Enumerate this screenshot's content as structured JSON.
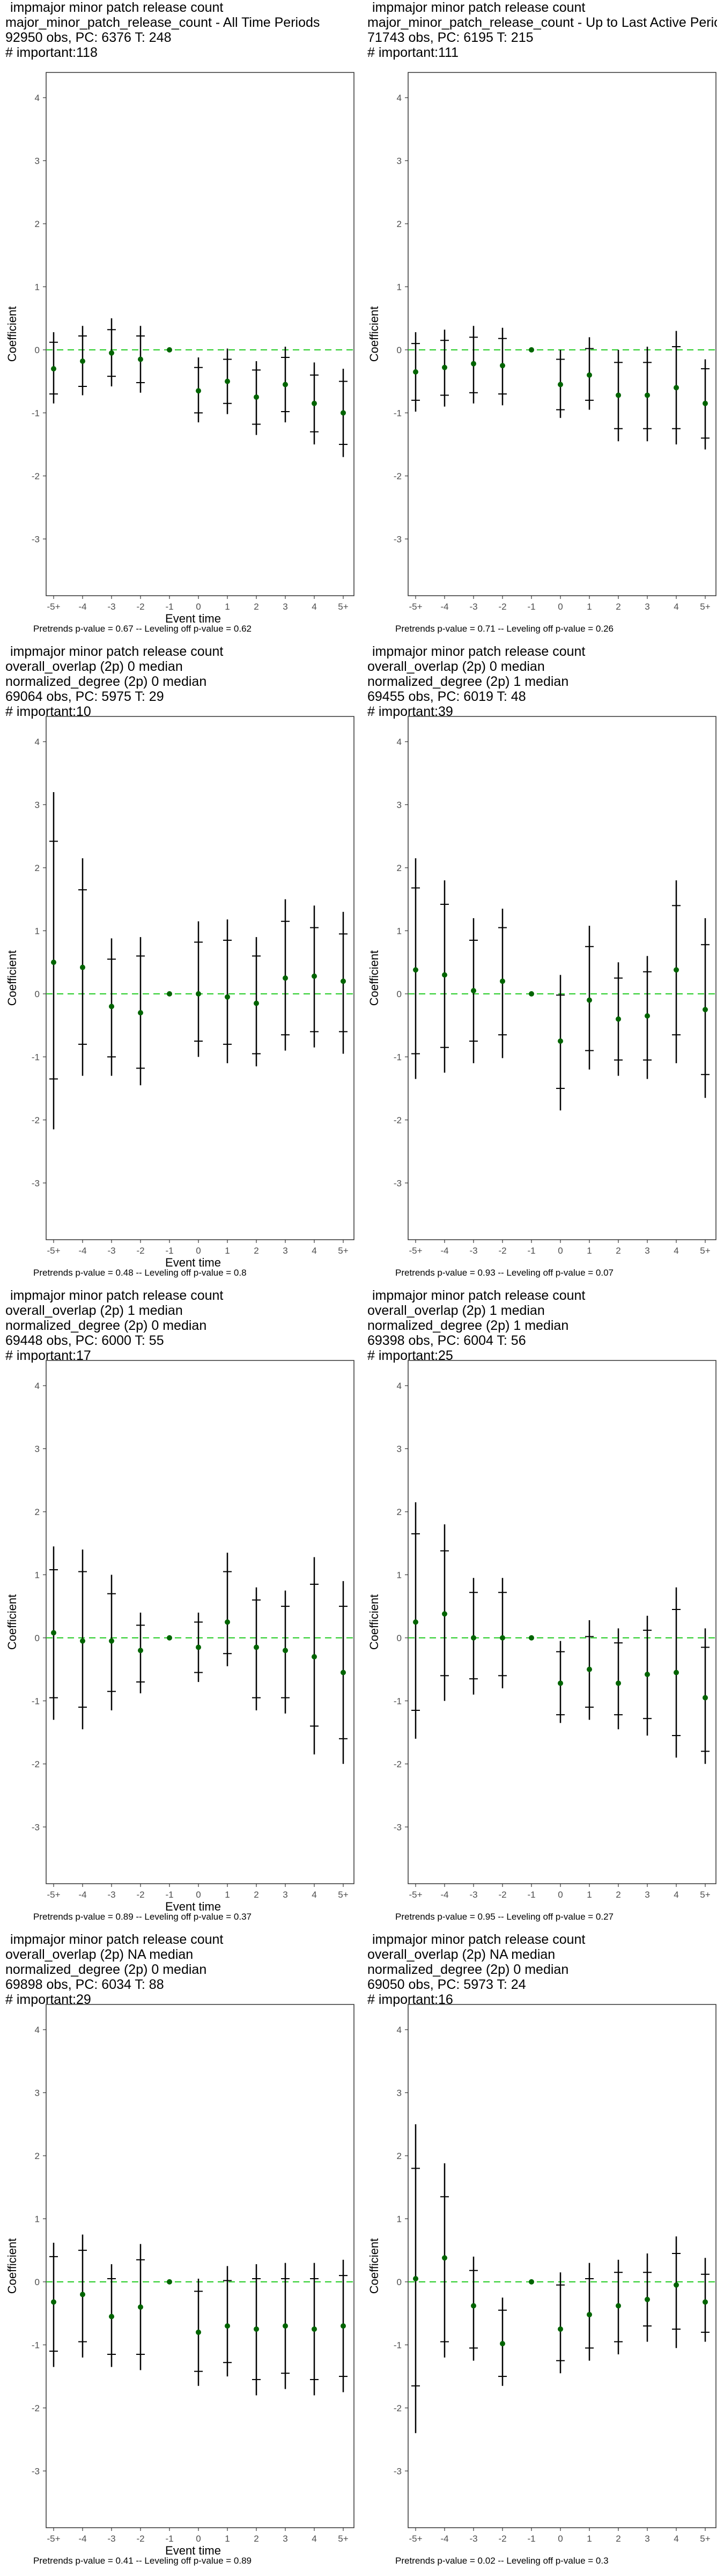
{
  "chart_data": [
    {
      "type": "errorbar",
      "header": [
        " impmajor minor patch release count",
        "major_minor_patch_release_count - All Time Periods",
        "92950 obs, PC: 6376 T: 248",
        "# important:118"
      ],
      "footer": "Pretrends p-value = 0.67 -- Leveling off p-value = 0.62",
      "xlabel": "Event time",
      "ylabel": "Coefficient",
      "categories": [
        "-5+",
        "-4",
        "-3",
        "-2",
        "-1",
        "0",
        "1",
        "2",
        "3",
        "4",
        "5+"
      ],
      "yticks": [
        -3,
        -2,
        -1,
        0,
        1,
        2,
        3,
        4
      ],
      "ylim": [
        -3.9,
        4.4
      ],
      "estimate": [
        -0.3,
        -0.18,
        -0.05,
        -0.15,
        0,
        -0.65,
        -0.5,
        -0.75,
        -0.55,
        -0.85,
        -1.0
      ],
      "ci95": [
        [
          -0.85,
          0.28
        ],
        [
          -0.72,
          0.38
        ],
        [
          -0.58,
          0.5
        ],
        [
          -0.68,
          0.38
        ],
        null,
        [
          -1.15,
          -0.12
        ],
        [
          -1.02,
          0.02
        ],
        [
          -1.35,
          -0.18
        ],
        [
          -1.15,
          0.05
        ],
        [
          -1.5,
          -0.2
        ],
        [
          -1.7,
          -0.3
        ]
      ],
      "ci90": [
        [
          -0.7,
          0.12
        ],
        [
          -0.58,
          0.22
        ],
        [
          -0.42,
          0.32
        ],
        [
          -0.52,
          0.22
        ],
        null,
        [
          -1.0,
          -0.28
        ],
        [
          -0.85,
          -0.15
        ],
        [
          -1.18,
          -0.32
        ],
        [
          -0.98,
          -0.12
        ],
        [
          -1.3,
          -0.4
        ],
        [
          -1.5,
          -0.5
        ]
      ]
    },
    {
      "type": "errorbar",
      "header": [
        " impmajor minor patch release count",
        "major_minor_patch_release_count - Up to Last Active Period",
        "71743 obs, PC: 6195 T: 215",
        "# important:111"
      ],
      "footer": "Pretrends p-value = 0.71 -- Leveling off p-value = 0.26",
      "xlabel": "",
      "ylabel": "Coefficient",
      "categories": [
        "-5+",
        "-4",
        "-3",
        "-2",
        "-1",
        "0",
        "1",
        "2",
        "3",
        "4",
        "5+"
      ],
      "yticks": [
        -3,
        -2,
        -1,
        0,
        1,
        2,
        3,
        4
      ],
      "ylim": [
        -3.9,
        4.4
      ],
      "estimate": [
        -0.35,
        -0.28,
        -0.22,
        -0.25,
        0,
        -0.55,
        -0.4,
        -0.72,
        -0.72,
        -0.6,
        -0.85
      ],
      "ci95": [
        [
          -0.98,
          0.28
        ],
        [
          -0.9,
          0.32
        ],
        [
          -0.85,
          0.38
        ],
        [
          -0.88,
          0.35
        ],
        null,
        [
          -1.08,
          0.0
        ],
        [
          -0.95,
          0.2
        ],
        [
          -1.45,
          0.0
        ],
        [
          -1.45,
          0.05
        ],
        [
          -1.5,
          0.3
        ],
        [
          -1.58,
          -0.15
        ]
      ],
      "ci90": [
        [
          -0.8,
          0.1
        ],
        [
          -0.72,
          0.15
        ],
        [
          -0.68,
          0.2
        ],
        [
          -0.7,
          0.18
        ],
        null,
        [
          -0.95,
          -0.15
        ],
        [
          -0.8,
          0.02
        ],
        [
          -1.25,
          -0.2
        ],
        [
          -1.25,
          -0.2
        ],
        [
          -1.25,
          0.05
        ],
        [
          -1.4,
          -0.3
        ]
      ]
    },
    {
      "type": "errorbar",
      "header": [
        " impmajor minor patch release count",
        "overall_overlap (2p) 0 median",
        "normalized_degree (2p) 0 median",
        "69064 obs, PC: 5975 T: 29",
        "# important:10"
      ],
      "footer": "Pretrends p-value = 0.48 -- Leveling off p-value = 0.8",
      "xlabel": "Event time",
      "ylabel": "Coefficient",
      "categories": [
        "-5+",
        "-4",
        "-3",
        "-2",
        "-1",
        "0",
        "1",
        "2",
        "3",
        "4",
        "5+"
      ],
      "yticks": [
        -3,
        -2,
        -1,
        0,
        1,
        2,
        3,
        4
      ],
      "ylim": [
        -3.9,
        4.4
      ],
      "estimate": [
        0.5,
        0.42,
        -0.2,
        -0.3,
        0,
        0.0,
        -0.05,
        -0.15,
        0.25,
        0.28,
        0.2
      ],
      "ci95": [
        [
          -2.15,
          3.2
        ],
        [
          -1.3,
          2.15
        ],
        [
          -1.3,
          0.88
        ],
        [
          -1.45,
          0.9
        ],
        null,
        [
          -1.0,
          1.15
        ],
        [
          -1.1,
          1.18
        ],
        [
          -1.15,
          0.9
        ],
        [
          -0.9,
          1.5
        ],
        [
          -0.85,
          1.4
        ],
        [
          -0.95,
          1.3
        ]
      ],
      "ci90": [
        [
          -1.35,
          2.42
        ],
        [
          -0.8,
          1.65
        ],
        [
          -1.0,
          0.55
        ],
        [
          -1.18,
          0.6
        ],
        null,
        [
          -0.75,
          0.82
        ],
        [
          -0.8,
          0.85
        ],
        [
          -0.95,
          0.6
        ],
        [
          -0.65,
          1.15
        ],
        [
          -0.6,
          1.05
        ],
        [
          -0.6,
          0.95
        ]
      ]
    },
    {
      "type": "errorbar",
      "header": [
        " impmajor minor patch release count",
        "overall_overlap (2p) 0 median",
        "normalized_degree (2p) 1 median",
        "69455 obs, PC: 6019 T: 48",
        "# important:39"
      ],
      "footer": "Pretrends p-value = 0.93 -- Leveling off p-value = 0.07",
      "xlabel": "",
      "ylabel": "Coefficient",
      "categories": [
        "-5+",
        "-4",
        "-3",
        "-2",
        "-1",
        "0",
        "1",
        "2",
        "3",
        "4",
        "5+"
      ],
      "yticks": [
        -3,
        -2,
        -1,
        0,
        1,
        2,
        3,
        4
      ],
      "ylim": [
        -3.9,
        4.4
      ],
      "estimate": [
        0.38,
        0.3,
        0.05,
        0.2,
        0,
        -0.75,
        -0.1,
        -0.4,
        -0.35,
        0.38,
        -0.25
      ],
      "ci95": [
        [
          -1.35,
          2.15
        ],
        [
          -1.25,
          1.8
        ],
        [
          -1.1,
          1.2
        ],
        [
          -1.02,
          1.35
        ],
        null,
        [
          -1.85,
          0.3
        ],
        [
          -1.2,
          1.08
        ],
        [
          -1.3,
          0.5
        ],
        [
          -1.35,
          0.6
        ],
        [
          -1.1,
          1.8
        ],
        [
          -1.65,
          1.2
        ]
      ],
      "ci90": [
        [
          -0.95,
          1.68
        ],
        [
          -0.85,
          1.42
        ],
        [
          -0.75,
          0.85
        ],
        [
          -0.65,
          1.05
        ],
        null,
        [
          -1.5,
          -0.02
        ],
        [
          -0.9,
          0.75
        ],
        [
          -1.05,
          0.25
        ],
        [
          -1.05,
          0.35
        ],
        [
          -0.65,
          1.4
        ],
        [
          -1.28,
          0.78
        ]
      ]
    },
    {
      "type": "errorbar",
      "header": [
        " impmajor minor patch release count",
        "overall_overlap (2p) 1 median",
        "normalized_degree (2p) 0 median",
        "69448 obs, PC: 6000 T: 55",
        "# important:17"
      ],
      "footer": "Pretrends p-value = 0.89 -- Leveling off p-value = 0.37",
      "xlabel": "Event time",
      "ylabel": "Coefficient",
      "categories": [
        "-5+",
        "-4",
        "-3",
        "-2",
        "-1",
        "0",
        "1",
        "2",
        "3",
        "4",
        "5+"
      ],
      "yticks": [
        -3,
        -2,
        -1,
        0,
        1,
        2,
        3,
        4
      ],
      "ylim": [
        -3.9,
        4.4
      ],
      "estimate": [
        0.08,
        -0.05,
        -0.05,
        -0.2,
        0,
        -0.15,
        0.25,
        -0.15,
        -0.2,
        -0.3,
        -0.55
      ],
      "ci95": [
        [
          -1.3,
          1.45
        ],
        [
          -1.45,
          1.4
        ],
        [
          -1.15,
          1.0
        ],
        [
          -0.88,
          0.4
        ],
        null,
        [
          -0.7,
          0.4
        ],
        [
          -0.45,
          1.35
        ],
        [
          -1.15,
          0.8
        ],
        [
          -1.2,
          0.75
        ],
        [
          -1.85,
          1.28
        ],
        [
          -2.0,
          0.9
        ]
      ],
      "ci90": [
        [
          -0.95,
          1.08
        ],
        [
          -1.1,
          1.05
        ],
        [
          -0.85,
          0.7
        ],
        [
          -0.7,
          0.2
        ],
        null,
        [
          -0.55,
          0.25
        ],
        [
          -0.25,
          1.05
        ],
        [
          -0.95,
          0.6
        ],
        [
          -0.95,
          0.5
        ],
        [
          -1.4,
          0.85
        ],
        [
          -1.6,
          0.5
        ]
      ]
    },
    {
      "type": "errorbar",
      "header": [
        " impmajor minor patch release count",
        "overall_overlap (2p) 1 median",
        "normalized_degree (2p) 1 median",
        "69398 obs, PC: 6004 T: 56",
        "# important:25"
      ],
      "footer": "Pretrends p-value = 0.95 -- Leveling off p-value = 0.27",
      "xlabel": "",
      "ylabel": "Coefficient",
      "categories": [
        "-5+",
        "-4",
        "-3",
        "-2",
        "-1",
        "0",
        "1",
        "2",
        "3",
        "4",
        "5+"
      ],
      "yticks": [
        -3,
        -2,
        -1,
        0,
        1,
        2,
        3,
        4
      ],
      "ylim": [
        -3.9,
        4.4
      ],
      "estimate": [
        0.25,
        0.38,
        0.0,
        0.0,
        0,
        -0.72,
        -0.5,
        -0.72,
        -0.58,
        -0.55,
        -0.95
      ],
      "ci95": [
        [
          -1.6,
          2.15
        ],
        [
          -1.0,
          1.8
        ],
        [
          -0.9,
          0.95
        ],
        [
          -0.8,
          0.95
        ],
        null,
        [
          -1.35,
          -0.05
        ],
        [
          -1.3,
          0.28
        ],
        [
          -1.45,
          0.15
        ],
        [
          -1.55,
          0.35
        ],
        [
          -1.9,
          0.8
        ],
        [
          -2.0,
          0.15
        ]
      ],
      "ci90": [
        [
          -1.15,
          1.65
        ],
        [
          -0.6,
          1.38
        ],
        [
          -0.65,
          0.72
        ],
        [
          -0.6,
          0.72
        ],
        null,
        [
          -1.22,
          -0.22
        ],
        [
          -1.1,
          0.02
        ],
        [
          -1.22,
          -0.08
        ],
        [
          -1.28,
          0.12
        ],
        [
          -1.55,
          0.45
        ],
        [
          -1.8,
          -0.15
        ]
      ]
    },
    {
      "type": "errorbar",
      "header": [
        " impmajor minor patch release count",
        "overall_overlap (2p) NA median",
        "normalized_degree (2p) 0 median",
        "69898 obs, PC: 6034 T: 88",
        "# important:29"
      ],
      "footer": "Pretrends p-value = 0.41 -- Leveling off p-value = 0.89",
      "xlabel": "Event time",
      "ylabel": "Coefficient",
      "categories": [
        "-5+",
        "-4",
        "-3",
        "-2",
        "-1",
        "0",
        "1",
        "2",
        "3",
        "4",
        "5+"
      ],
      "yticks": [
        -3,
        -2,
        -1,
        0,
        1,
        2,
        3,
        4
      ],
      "ylim": [
        -3.9,
        4.4
      ],
      "estimate": [
        -0.32,
        -0.2,
        -0.55,
        -0.4,
        0,
        -0.8,
        -0.7,
        -0.75,
        -0.7,
        -0.75,
        -0.7
      ],
      "ci95": [
        [
          -1.35,
          0.62
        ],
        [
          -1.2,
          0.75
        ],
        [
          -1.35,
          0.28
        ],
        [
          -1.4,
          0.6
        ],
        null,
        [
          -1.65,
          0.05
        ],
        [
          -1.5,
          0.25
        ],
        [
          -1.8,
          0.28
        ],
        [
          -1.7,
          0.3
        ],
        [
          -1.8,
          0.3
        ],
        [
          -1.75,
          0.35
        ]
      ],
      "ci90": [
        [
          -1.1,
          0.4
        ],
        [
          -0.95,
          0.5
        ],
        [
          -1.15,
          0.05
        ],
        [
          -1.15,
          0.35
        ],
        null,
        [
          -1.42,
          -0.15
        ],
        [
          -1.28,
          0.02
        ],
        [
          -1.55,
          0.05
        ],
        [
          -1.45,
          0.05
        ],
        [
          -1.55,
          0.05
        ],
        [
          -1.5,
          0.1
        ]
      ]
    },
    {
      "type": "errorbar",
      "header": [
        " impmajor minor patch release count",
        "overall_overlap (2p) NA median",
        "normalized_degree (2p) 0 median",
        "69050 obs, PC: 5973 T: 24",
        "# important:16"
      ],
      "footer": "Pretrends p-value = 0.02 -- Leveling off p-value = 0.3",
      "xlabel": "",
      "ylabel": "Coefficient",
      "categories": [
        "-5+",
        "-4",
        "-3",
        "-2",
        "-1",
        "0",
        "1",
        "2",
        "3",
        "4",
        "5+"
      ],
      "yticks": [
        -3,
        -2,
        -1,
        0,
        1,
        2,
        3,
        4
      ],
      "ylim": [
        -3.9,
        4.4
      ],
      "estimate": [
        0.05,
        0.38,
        -0.38,
        -0.98,
        0,
        -0.75,
        -0.52,
        -0.38,
        -0.28,
        -0.05,
        -0.32
      ],
      "ci95": [
        [
          -2.4,
          2.5
        ],
        [
          -1.2,
          1.88
        ],
        [
          -1.25,
          0.4
        ],
        [
          -1.65,
          -0.25
        ],
        null,
        [
          -1.45,
          0.15
        ],
        [
          -1.25,
          0.3
        ],
        [
          -1.15,
          0.35
        ],
        [
          -0.95,
          0.45
        ],
        [
          -1.05,
          0.72
        ],
        [
          -0.95,
          0.38
        ]
      ],
      "ci90": [
        [
          -1.65,
          1.8
        ],
        [
          -0.95,
          1.35
        ],
        [
          -1.05,
          0.18
        ],
        [
          -1.5,
          -0.45
        ],
        null,
        [
          -1.25,
          -0.05
        ],
        [
          -1.05,
          0.05
        ],
        [
          -0.95,
          0.15
        ],
        [
          -0.7,
          0.15
        ],
        [
          -0.75,
          0.45
        ],
        [
          -0.8,
          0.12
        ]
      ]
    }
  ],
  "colors": {
    "estimate_point": "#006400",
    "zero_line": "#22cc22",
    "error_bar": "#000000",
    "axis_text": "#4d4d4d",
    "panel_border": "#333333"
  }
}
